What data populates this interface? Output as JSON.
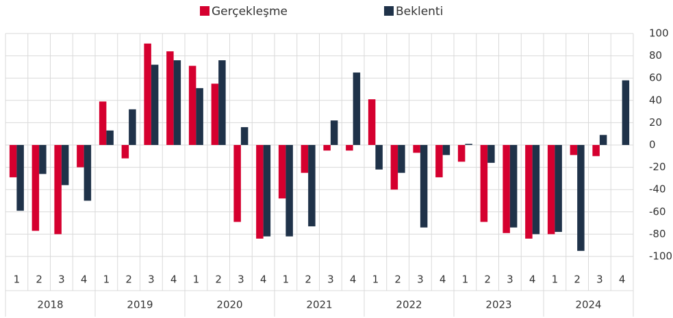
{
  "chart_data": {
    "type": "bar",
    "categories": [
      "1",
      "2",
      "3",
      "4",
      "1",
      "2",
      "3",
      "4",
      "1",
      "2",
      "3",
      "4",
      "1",
      "2",
      "3",
      "4",
      "1",
      "2",
      "3",
      "4",
      "1",
      "2",
      "3",
      "4",
      "1",
      "2",
      "3",
      "4"
    ],
    "groups": [
      "2018",
      "2019",
      "2020",
      "2021",
      "2022",
      "2023",
      "2024"
    ],
    "series": [
      {
        "name": "Gerçekleşme",
        "color": "#d5002f",
        "values": [
          -29,
          -77,
          -80,
          -20,
          39,
          -12,
          91,
          84,
          71,
          55,
          -69,
          -84,
          -48,
          -25,
          -5,
          -5,
          41,
          -40,
          -7,
          -29,
          -15,
          -69,
          -79,
          -84,
          -80,
          -9,
          -10,
          null
        ]
      },
      {
        "name": "Beklenti",
        "color": "#1f3249",
        "values": [
          -59,
          -26,
          -36,
          -50,
          13,
          32,
          72,
          76,
          51,
          76,
          16,
          -82,
          -82,
          -73,
          22,
          65,
          -22,
          -25,
          -74,
          -9,
          1,
          -16,
          -74,
          -80,
          -78,
          -95,
          9,
          58
        ]
      }
    ],
    "ylim": [
      -100,
      100
    ],
    "yticks": [
      -100,
      -80,
      -60,
      -40,
      -20,
      0,
      20,
      40,
      60,
      80,
      100
    ],
    "grid": true
  }
}
